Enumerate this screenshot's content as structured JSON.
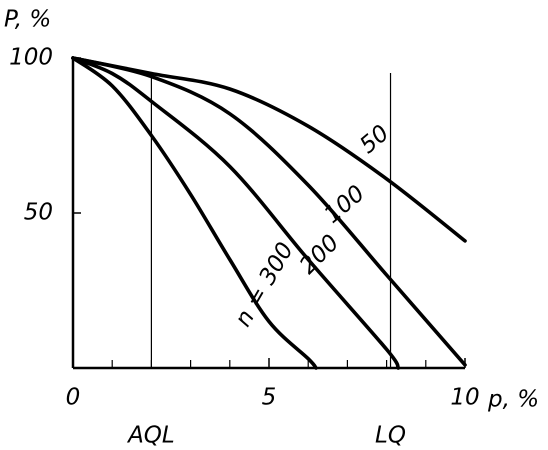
{
  "chart_data": {
    "type": "line",
    "y_axis_label": "P, %",
    "x_axis_label": "p, %",
    "xlim": [
      0,
      10
    ],
    "ylim": [
      0,
      100
    ],
    "xticks": [
      0,
      5,
      10
    ],
    "yticks": [
      50,
      100
    ],
    "x_minor_ticks": [
      1,
      2,
      3,
      4,
      6,
      7,
      8,
      9
    ],
    "reference_lines": [
      {
        "x": 2,
        "label": "AQL"
      },
      {
        "x": 8.1,
        "label": "LQ"
      }
    ],
    "series": [
      {
        "name": "50",
        "color": "#000000",
        "x": [
          0,
          2,
          4,
          6,
          8,
          10
        ],
        "values": [
          100,
          95,
          90,
          78,
          61,
          41
        ]
      },
      {
        "name": "100",
        "color": "#000000",
        "x": [
          0,
          2,
          4,
          6,
          8,
          10
        ],
        "values": [
          100,
          94,
          82,
          59,
          30,
          1
        ]
      },
      {
        "name": "200",
        "color": "#000000",
        "x": [
          0,
          1,
          2,
          4,
          6,
          8,
          8.3
        ],
        "values": [
          100,
          95,
          86,
          65,
          35,
          6,
          0
        ]
      },
      {
        "name": "n = 300",
        "color": "#000000",
        "x": [
          0,
          1,
          2,
          3,
          4,
          5,
          6,
          6.2
        ],
        "values": [
          100,
          91,
          75,
          56,
          35,
          15,
          3,
          0
        ]
      }
    ]
  }
}
